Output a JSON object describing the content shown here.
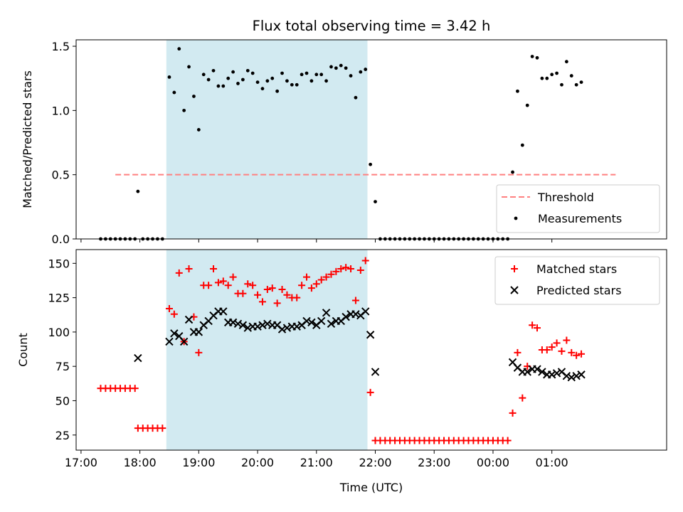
{
  "chart_data": [
    {
      "type": "scatter",
      "title": "Flux total observing time = 3.42 h",
      "ylabel": "Matched/Predicted stars",
      "xlabel": "",
      "ylim": [
        0,
        1.55
      ],
      "yticks": [
        "0.0",
        "0.5",
        "1.0",
        "1.5"
      ],
      "highlight_span": {
        "start": "18:27",
        "end": "21:52",
        "color": "#add8e6"
      },
      "threshold": {
        "name": "Threshold",
        "value": 0.5,
        "x_start": "17:35",
        "x_end": "02:05",
        "color": "#ff8080",
        "style": "dashed"
      },
      "legend": {
        "position": "bottom-right",
        "entries": [
          "Threshold",
          "Measurements"
        ]
      },
      "series": [
        {
          "name": "Measurements",
          "color": "#000000",
          "marker": "dot",
          "points": [
            [
              "17:20",
              0
            ],
            [
              "17:25",
              0
            ],
            [
              "17:30",
              0
            ],
            [
              "17:35",
              0
            ],
            [
              "17:40",
              0
            ],
            [
              "17:45",
              0
            ],
            [
              "17:50",
              0
            ],
            [
              "17:55",
              0
            ],
            [
              "17:58",
              0.37
            ],
            [
              "18:03",
              0
            ],
            [
              "18:08",
              0
            ],
            [
              "18:13",
              0
            ],
            [
              "18:18",
              0
            ],
            [
              "18:23",
              0
            ],
            [
              "18:30",
              1.26
            ],
            [
              "18:35",
              1.14
            ],
            [
              "18:40",
              1.48
            ],
            [
              "18:45",
              1.0
            ],
            [
              "18:50",
              1.34
            ],
            [
              "18:55",
              1.11
            ],
            [
              "19:00",
              0.85
            ],
            [
              "19:05",
              1.28
            ],
            [
              "19:10",
              1.24
            ],
            [
              "19:15",
              1.31
            ],
            [
              "19:20",
              1.19
            ],
            [
              "19:25",
              1.19
            ],
            [
              "19:30",
              1.25
            ],
            [
              "19:35",
              1.3
            ],
            [
              "19:40",
              1.21
            ],
            [
              "19:45",
              1.24
            ],
            [
              "19:50",
              1.31
            ],
            [
              "19:55",
              1.29
            ],
            [
              "20:00",
              1.22
            ],
            [
              "20:05",
              1.17
            ],
            [
              "20:10",
              1.23
            ],
            [
              "20:15",
              1.25
            ],
            [
              "20:20",
              1.15
            ],
            [
              "20:25",
              1.29
            ],
            [
              "20:30",
              1.23
            ],
            [
              "20:35",
              1.2
            ],
            [
              "20:40",
              1.2
            ],
            [
              "20:45",
              1.28
            ],
            [
              "20:50",
              1.29
            ],
            [
              "20:55",
              1.23
            ],
            [
              "21:00",
              1.28
            ],
            [
              "21:05",
              1.28
            ],
            [
              "21:10",
              1.23
            ],
            [
              "21:15",
              1.34
            ],
            [
              "21:20",
              1.33
            ],
            [
              "21:25",
              1.35
            ],
            [
              "21:30",
              1.33
            ],
            [
              "21:35",
              1.27
            ],
            [
              "21:40",
              1.1
            ],
            [
              "21:45",
              1.3
            ],
            [
              "21:50",
              1.32
            ],
            [
              "21:55",
              0.58
            ],
            [
              "22:00",
              0.29
            ],
            [
              "22:05",
              0
            ],
            [
              "22:10",
              0
            ],
            [
              "22:15",
              0
            ],
            [
              "22:20",
              0
            ],
            [
              "22:25",
              0
            ],
            [
              "22:30",
              0
            ],
            [
              "22:35",
              0
            ],
            [
              "22:40",
              0
            ],
            [
              "22:45",
              0
            ],
            [
              "22:50",
              0
            ],
            [
              "22:55",
              0
            ],
            [
              "23:00",
              0
            ],
            [
              "23:05",
              0
            ],
            [
              "23:10",
              0
            ],
            [
              "23:15",
              0
            ],
            [
              "23:20",
              0
            ],
            [
              "23:25",
              0
            ],
            [
              "23:30",
              0
            ],
            [
              "23:35",
              0
            ],
            [
              "23:40",
              0
            ],
            [
              "23:45",
              0
            ],
            [
              "23:50",
              0
            ],
            [
              "23:55",
              0
            ],
            [
              "00:00",
              0
            ],
            [
              "00:05",
              0
            ],
            [
              "00:10",
              0
            ],
            [
              "00:15",
              0
            ],
            [
              "00:20",
              0.52
            ],
            [
              "00:25",
              1.15
            ],
            [
              "00:30",
              0.73
            ],
            [
              "00:35",
              1.04
            ],
            [
              "00:40",
              1.42
            ],
            [
              "00:45",
              1.41
            ],
            [
              "00:50",
              1.25
            ],
            [
              "00:55",
              1.25
            ],
            [
              "01:00",
              1.28
            ],
            [
              "01:05",
              1.29
            ],
            [
              "01:10",
              1.2
            ],
            [
              "01:15",
              1.38
            ],
            [
              "01:20",
              1.27
            ],
            [
              "01:25",
              1.2
            ],
            [
              "01:30",
              1.22
            ]
          ]
        }
      ]
    },
    {
      "type": "scatter",
      "title": "",
      "ylabel": "Count",
      "xlabel": "Time (UTC)",
      "ylim": [
        14,
        160
      ],
      "yticks": [
        "25",
        "50",
        "75",
        "100",
        "125",
        "150"
      ],
      "xticks": [
        "17:00",
        "18:00",
        "19:00",
        "20:00",
        "21:00",
        "22:00",
        "23:00",
        "00:00",
        "01:00"
      ],
      "highlight_span": {
        "start": "18:27",
        "end": "21:52",
        "color": "#add8e6"
      },
      "legend": {
        "position": "top-right",
        "entries": [
          "Matched stars",
          "Predicted stars"
        ]
      },
      "series": [
        {
          "name": "Matched stars",
          "color": "#ff0000",
          "marker": "plus",
          "points": [
            [
              "17:20",
              59
            ],
            [
              "17:25",
              59
            ],
            [
              "17:30",
              59
            ],
            [
              "17:35",
              59
            ],
            [
              "17:40",
              59
            ],
            [
              "17:45",
              59
            ],
            [
              "17:50",
              59
            ],
            [
              "17:55",
              59
            ],
            [
              "17:58",
              30
            ],
            [
              "18:03",
              30
            ],
            [
              "18:08",
              30
            ],
            [
              "18:13",
              30
            ],
            [
              "18:18",
              30
            ],
            [
              "18:23",
              30
            ],
            [
              "18:30",
              117
            ],
            [
              "18:35",
              113
            ],
            [
              "18:40",
              143
            ],
            [
              "18:45",
              93
            ],
            [
              "18:50",
              146
            ],
            [
              "18:55",
              111
            ],
            [
              "19:00",
              85
            ],
            [
              "19:05",
              134
            ],
            [
              "19:10",
              134
            ],
            [
              "19:15",
              146
            ],
            [
              "19:20",
              136
            ],
            [
              "19:25",
              137
            ],
            [
              "19:30",
              134
            ],
            [
              "19:35",
              140
            ],
            [
              "19:40",
              128
            ],
            [
              "19:45",
              128
            ],
            [
              "19:50",
              135
            ],
            [
              "19:55",
              134
            ],
            [
              "20:00",
              127
            ],
            [
              "20:05",
              122
            ],
            [
              "20:10",
              131
            ],
            [
              "20:15",
              132
            ],
            [
              "20:20",
              121
            ],
            [
              "20:25",
              131
            ],
            [
              "20:30",
              127
            ],
            [
              "20:35",
              125
            ],
            [
              "20:40",
              125
            ],
            [
              "20:45",
              134
            ],
            [
              "20:50",
              140
            ],
            [
              "20:55",
              132
            ],
            [
              "21:00",
              135
            ],
            [
              "21:05",
              138
            ],
            [
              "21:10",
              140
            ],
            [
              "21:15",
              142
            ],
            [
              "21:20",
              144
            ],
            [
              "21:25",
              146
            ],
            [
              "21:30",
              147
            ],
            [
              "21:35",
              146
            ],
            [
              "21:40",
              123
            ],
            [
              "21:45",
              145
            ],
            [
              "21:50",
              152
            ],
            [
              "21:55",
              56
            ],
            [
              "22:00",
              21
            ],
            [
              "22:05",
              21
            ],
            [
              "22:10",
              21
            ],
            [
              "22:15",
              21
            ],
            [
              "22:20",
              21
            ],
            [
              "22:25",
              21
            ],
            [
              "22:30",
              21
            ],
            [
              "22:35",
              21
            ],
            [
              "22:40",
              21
            ],
            [
              "22:45",
              21
            ],
            [
              "22:50",
              21
            ],
            [
              "22:55",
              21
            ],
            [
              "23:00",
              21
            ],
            [
              "23:05",
              21
            ],
            [
              "23:10",
              21
            ],
            [
              "23:15",
              21
            ],
            [
              "23:20",
              21
            ],
            [
              "23:25",
              21
            ],
            [
              "23:30",
              21
            ],
            [
              "23:35",
              21
            ],
            [
              "23:40",
              21
            ],
            [
              "23:45",
              21
            ],
            [
              "23:50",
              21
            ],
            [
              "23:55",
              21
            ],
            [
              "00:00",
              21
            ],
            [
              "00:05",
              21
            ],
            [
              "00:10",
              21
            ],
            [
              "00:15",
              21
            ],
            [
              "00:20",
              41
            ],
            [
              "00:25",
              85
            ],
            [
              "00:30",
              52
            ],
            [
              "00:35",
              75
            ],
            [
              "00:40",
              105
            ],
            [
              "00:45",
              103
            ],
            [
              "00:50",
              87
            ],
            [
              "00:55",
              87
            ],
            [
              "01:00",
              89
            ],
            [
              "01:05",
              92
            ],
            [
              "01:10",
              86
            ],
            [
              "01:15",
              94
            ],
            [
              "01:20",
              85
            ],
            [
              "01:25",
              83
            ],
            [
              "01:30",
              84
            ]
          ]
        },
        {
          "name": "Predicted stars",
          "color": "#000000",
          "marker": "x",
          "points": [
            [
              "17:58",
              81
            ],
            [
              "18:30",
              93
            ],
            [
              "18:35",
              99
            ],
            [
              "18:40",
              97
            ],
            [
              "18:45",
              93
            ],
            [
              "18:50",
              109
            ],
            [
              "18:55",
              100
            ],
            [
              "19:00",
              100
            ],
            [
              "19:05",
              105
            ],
            [
              "19:10",
              108
            ],
            [
              "19:15",
              112
            ],
            [
              "19:20",
              115
            ],
            [
              "19:25",
              115
            ],
            [
              "19:30",
              107
            ],
            [
              "19:35",
              107
            ],
            [
              "19:40",
              106
            ],
            [
              "19:45",
              105
            ],
            [
              "19:50",
              103
            ],
            [
              "19:55",
              104
            ],
            [
              "20:00",
              104
            ],
            [
              "20:05",
              105
            ],
            [
              "20:10",
              106
            ],
            [
              "20:15",
              105
            ],
            [
              "20:20",
              105
            ],
            [
              "20:25",
              102
            ],
            [
              "20:30",
              103
            ],
            [
              "20:35",
              104
            ],
            [
              "20:40",
              104
            ],
            [
              "20:45",
              105
            ],
            [
              "20:50",
              108
            ],
            [
              "20:55",
              107
            ],
            [
              "21:00",
              105
            ],
            [
              "21:05",
              108
            ],
            [
              "21:10",
              114
            ],
            [
              "21:15",
              106
            ],
            [
              "21:20",
              108
            ],
            [
              "21:25",
              108
            ],
            [
              "21:30",
              111
            ],
            [
              "21:35",
              113
            ],
            [
              "21:40",
              113
            ],
            [
              "21:45",
              112
            ],
            [
              "21:50",
              115
            ],
            [
              "21:55",
              98
            ],
            [
              "22:00",
              71
            ],
            [
              "00:20",
              78
            ],
            [
              "00:25",
              74
            ],
            [
              "00:30",
              71
            ],
            [
              "00:35",
              71
            ],
            [
              "00:40",
              73
            ],
            [
              "00:45",
              73
            ],
            [
              "00:50",
              71
            ],
            [
              "00:55",
              69
            ],
            [
              "01:00",
              69
            ],
            [
              "01:05",
              70
            ],
            [
              "01:10",
              71
            ],
            [
              "01:15",
              68
            ],
            [
              "01:20",
              67
            ],
            [
              "01:25",
              68
            ],
            [
              "01:30",
              69
            ]
          ]
        }
      ]
    }
  ]
}
